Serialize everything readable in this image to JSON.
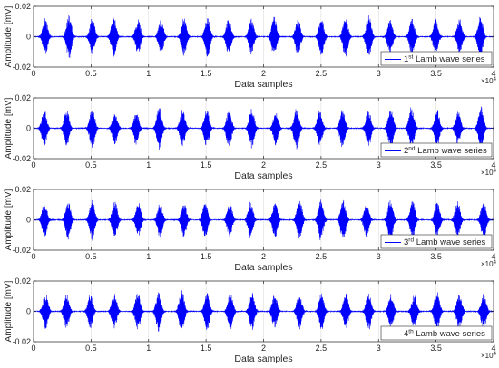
{
  "figure": {
    "signal_color": "#0000ff",
    "axis_color": "#262626",
    "grid_color": "#dcdcdc",
    "background": "#ffffff"
  },
  "chart_data": [
    {
      "type": "line",
      "xlabel": "Data samples",
      "ylabel": "Amplitude [mV]",
      "xlim": [
        0,
        40000
      ],
      "ylim": [
        -0.02,
        0.02
      ],
      "xticks": [
        0,
        5000,
        10000,
        15000,
        20000,
        25000,
        30000,
        35000,
        40000
      ],
      "xtick_labels": [
        "0",
        "0.5",
        "1",
        "1.5",
        "2",
        "2.5",
        "3",
        "3.5",
        "4"
      ],
      "yticks": [
        -0.02,
        0,
        0.02
      ],
      "ytick_labels": [
        "-0.02",
        "0",
        "0.02"
      ],
      "x_exponent_label": "×10",
      "x_exponent_power": "4",
      "grid": true,
      "legend_position": "bottom-right",
      "series": [
        {
          "legend_prefix": "1",
          "legend_sup": "st",
          "legend_suffix": " Lamb wave series",
          "description": "Repeating Lamb-wave bursts (~1 ms packets) around 0 mV, peak amplitude about ±0.015 mV",
          "peak_amplitude": 0.015,
          "burst_period_samples": 2000,
          "seed": 3
        }
      ]
    },
    {
      "type": "line",
      "xlabel": "Data samples",
      "ylabel": "Amplitude [mV]",
      "xlim": [
        0,
        40000
      ],
      "ylim": [
        -0.02,
        0.02
      ],
      "xticks": [
        0,
        5000,
        10000,
        15000,
        20000,
        25000,
        30000,
        35000,
        40000
      ],
      "xtick_labels": [
        "0",
        "0.5",
        "1",
        "1.5",
        "2",
        "2.5",
        "3",
        "3.5",
        "4"
      ],
      "yticks": [
        -0.02,
        0,
        0.02
      ],
      "ytick_labels": [
        "-0.02",
        "0",
        "0.02"
      ],
      "x_exponent_label": "×10",
      "x_exponent_power": "4",
      "grid": true,
      "legend_position": "bottom-right",
      "series": [
        {
          "legend_prefix": "2",
          "legend_sup": "nd",
          "legend_suffix": " Lamb wave series",
          "description": "Repeating Lamb-wave bursts around 0 mV, peak amplitude about ±0.015 mV",
          "peak_amplitude": 0.015,
          "burst_period_samples": 2000,
          "seed": 11
        }
      ]
    },
    {
      "type": "line",
      "xlabel": "Data samples",
      "ylabel": "Amplitude [mV]",
      "xlim": [
        0,
        40000
      ],
      "ylim": [
        -0.02,
        0.02
      ],
      "xticks": [
        0,
        5000,
        10000,
        15000,
        20000,
        25000,
        30000,
        35000,
        40000
      ],
      "xtick_labels": [
        "0",
        "0.5",
        "1",
        "1.5",
        "2",
        "2.5",
        "3",
        "3.5",
        "4"
      ],
      "yticks": [
        -0.02,
        0,
        0.02
      ],
      "ytick_labels": [
        "-0.02",
        "0",
        "0.02"
      ],
      "x_exponent_label": "×10",
      "x_exponent_power": "4",
      "grid": true,
      "legend_position": "bottom-right",
      "series": [
        {
          "legend_prefix": "3",
          "legend_sup": "rd",
          "legend_suffix": " Lamb wave series",
          "description": "Repeating Lamb-wave bursts around 0 mV, peak amplitude about ±0.015 mV",
          "peak_amplitude": 0.015,
          "burst_period_samples": 2000,
          "seed": 23
        }
      ]
    },
    {
      "type": "line",
      "xlabel": "Data samples",
      "ylabel": "Amplitude [mV]",
      "xlim": [
        0,
        40000
      ],
      "ylim": [
        -0.02,
        0.02
      ],
      "xticks": [
        0,
        5000,
        10000,
        15000,
        20000,
        25000,
        30000,
        35000,
        40000
      ],
      "xtick_labels": [
        "0",
        "0.5",
        "1",
        "1.5",
        "2",
        "2.5",
        "3",
        "3.5",
        "4"
      ],
      "yticks": [
        -0.02,
        0,
        0.02
      ],
      "ytick_labels": [
        "-0.02",
        "0",
        "0.02"
      ],
      "x_exponent_label": "×10",
      "x_exponent_power": "4",
      "grid": true,
      "legend_position": "bottom-right",
      "series": [
        {
          "legend_prefix": "4",
          "legend_sup": "th",
          "legend_suffix": " Lamb wave series",
          "description": "Repeating Lamb-wave bursts around 0 mV, peak amplitude about ±0.015 mV",
          "peak_amplitude": 0.015,
          "burst_period_samples": 2000,
          "seed": 37
        }
      ]
    }
  ]
}
